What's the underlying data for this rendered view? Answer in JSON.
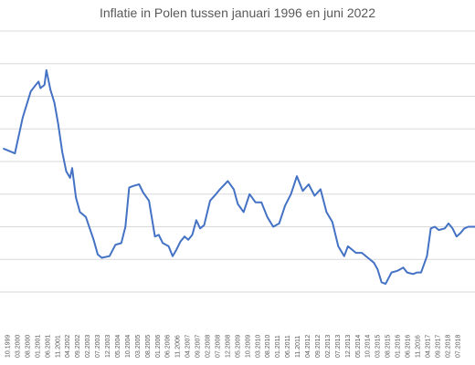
{
  "chart_data": {
    "type": "line",
    "title": "Inflatie in Polen tussen januari 1996 en juni 2022",
    "xlabel": "",
    "ylabel": "",
    "grid": true,
    "legend": "none",
    "series_color": "#4472C4",
    "grid_color": "#d9d9d9",
    "x_tick_labels": [
      "10.1999",
      "03.2000",
      "08.2000",
      "01.2001",
      "06.2001",
      "11.2001",
      "04.2002",
      "09.2002",
      "02.2003",
      "07.2003",
      "12.2003",
      "05.2004",
      "10.2004",
      "03.2005",
      "08.2005",
      "01.2006",
      "06.2006",
      "11.2006",
      "04.2007",
      "09.2007",
      "02.2008",
      "07.2008",
      "12.2008",
      "05.2009",
      "10.2009",
      "03.2010",
      "08.2010",
      "01.2011",
      "06.2011",
      "11.2011",
      "04.2012",
      "09.2012",
      "02.2013",
      "07.2013",
      "12.2013",
      "05.2014",
      "10.2014",
      "03.2015",
      "08.2015",
      "01.2016",
      "06.2016",
      "11.2016",
      "04.2017",
      "09.2017",
      "02.2018",
      "07.2018"
    ],
    "series": [
      {
        "values": [
          [
            1999.0,
            6.8
          ],
          [
            1999.5,
            6.5
          ],
          [
            1999.83,
            8.7
          ],
          [
            2000.0,
            9.5
          ],
          [
            2000.17,
            10.3
          ],
          [
            2000.33,
            10.6
          ],
          [
            2000.5,
            10.9
          ],
          [
            2000.58,
            10.5
          ],
          [
            2000.75,
            10.7
          ],
          [
            2000.83,
            11.6
          ],
          [
            2001.0,
            10.4
          ],
          [
            2001.17,
            9.6
          ],
          [
            2001.33,
            8.3
          ],
          [
            2001.5,
            6.6
          ],
          [
            2001.67,
            5.4
          ],
          [
            2001.83,
            5.0
          ],
          [
            2001.92,
            5.6
          ],
          [
            2002.08,
            3.8
          ],
          [
            2002.25,
            2.9
          ],
          [
            2002.5,
            2.6
          ],
          [
            2002.83,
            1.2
          ],
          [
            2003.0,
            0.3
          ],
          [
            2003.17,
            0.1
          ],
          [
            2003.5,
            0.2
          ],
          [
            2003.75,
            0.9
          ],
          [
            2004.0,
            1.0
          ],
          [
            2004.17,
            2.0
          ],
          [
            2004.33,
            4.4
          ],
          [
            2004.5,
            4.5
          ],
          [
            2004.75,
            4.6
          ],
          [
            2004.92,
            4.1
          ],
          [
            2005.17,
            3.6
          ],
          [
            2005.42,
            1.4
          ],
          [
            2005.58,
            1.5
          ],
          [
            2005.75,
            1.0
          ],
          [
            2006.0,
            0.8
          ],
          [
            2006.17,
            0.2
          ],
          [
            2006.33,
            0.6
          ],
          [
            2006.5,
            1.1
          ],
          [
            2006.67,
            1.4
          ],
          [
            2006.83,
            1.2
          ],
          [
            2007.0,
            1.5
          ],
          [
            2007.17,
            2.4
          ],
          [
            2007.33,
            1.9
          ],
          [
            2007.5,
            2.1
          ],
          [
            2007.75,
            3.6
          ],
          [
            2008.0,
            4.0
          ],
          [
            2008.17,
            4.3
          ],
          [
            2008.5,
            4.8
          ],
          [
            2008.75,
            4.3
          ],
          [
            2008.92,
            3.4
          ],
          [
            2009.17,
            2.9
          ],
          [
            2009.42,
            4.0
          ],
          [
            2009.67,
            3.5
          ],
          [
            2009.92,
            3.5
          ],
          [
            2010.17,
            2.6
          ],
          [
            2010.42,
            2.0
          ],
          [
            2010.67,
            2.2
          ],
          [
            2010.92,
            3.3
          ],
          [
            2011.17,
            4.0
          ],
          [
            2011.42,
            5.1
          ],
          [
            2011.67,
            4.2
          ],
          [
            2011.92,
            4.6
          ],
          [
            2012.17,
            3.9
          ],
          [
            2012.42,
            4.3
          ],
          [
            2012.67,
            2.9
          ],
          [
            2012.92,
            2.3
          ],
          [
            2013.17,
            0.8
          ],
          [
            2013.42,
            0.2
          ],
          [
            2013.58,
            0.8
          ],
          [
            2013.75,
            0.6
          ],
          [
            2013.92,
            0.4
          ],
          [
            2014.17,
            0.4
          ],
          [
            2014.42,
            0.1
          ],
          [
            2014.67,
            -0.2
          ],
          [
            2014.83,
            -0.6
          ],
          [
            2015.0,
            -1.4
          ],
          [
            2015.17,
            -1.5
          ],
          [
            2015.42,
            -0.8
          ],
          [
            2015.67,
            -0.7
          ],
          [
            2015.92,
            -0.5
          ],
          [
            2016.08,
            -0.8
          ],
          [
            2016.33,
            -0.9
          ],
          [
            2016.5,
            -0.8
          ],
          [
            2016.67,
            -0.8
          ],
          [
            2016.92,
            0.2
          ],
          [
            2017.08,
            1.9
          ],
          [
            2017.25,
            2.0
          ],
          [
            2017.42,
            1.8
          ],
          [
            2017.67,
            1.9
          ],
          [
            2017.83,
            2.2
          ],
          [
            2018.0,
            1.9
          ],
          [
            2018.17,
            1.4
          ],
          [
            2018.33,
            1.6
          ],
          [
            2018.5,
            1.9
          ],
          [
            2018.67,
            2.0
          ],
          [
            2019.0,
            2.0
          ]
        ]
      }
    ],
    "xlim": [
      1998.87,
      2018.95
    ],
    "ylim": [
      -2,
      14
    ],
    "y_gridlines": [
      0,
      2,
      4,
      6,
      8,
      10,
      12,
      14
    ]
  }
}
